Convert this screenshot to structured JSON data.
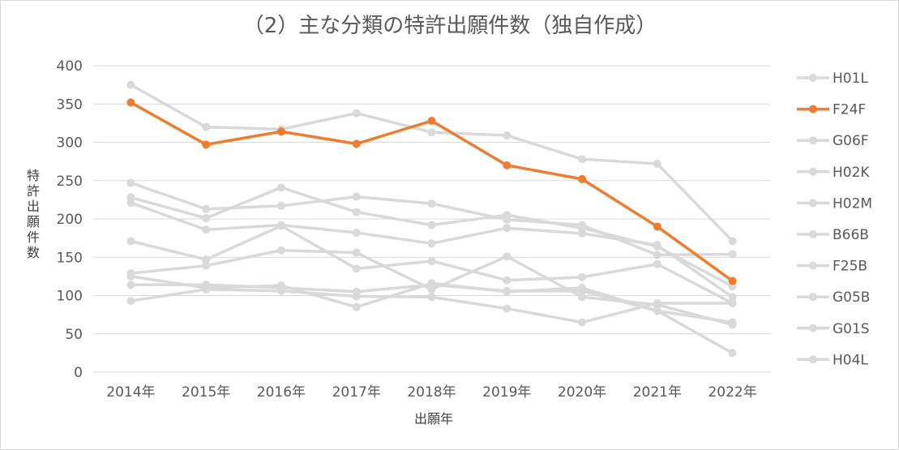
{
  "chart_data": {
    "type": "line",
    "title": "（2）主な分類の特許出願件数（独自作成）",
    "xlabel": "出願年",
    "ylabel": "特許出願件数",
    "ylim": [
      0,
      400
    ],
    "yticks": [
      "0",
      "50",
      "100",
      "150",
      "200",
      "250",
      "300",
      "350",
      "400"
    ],
    "grid": true,
    "legend_position": "right",
    "categories": [
      "2014年",
      "2015年",
      "2016年",
      "2017年",
      "2018年",
      "2019年",
      "2020年",
      "2021年",
      "2022年"
    ],
    "highlight_color": "#ed7d31",
    "base_color": "#d9d9d9",
    "series": [
      {
        "name": "H01L",
        "highlight": false,
        "values": [
          375,
          320,
          317,
          338,
          313,
          309,
          278,
          272,
          171
        ]
      },
      {
        "name": "F24F",
        "highlight": true,
        "values": [
          352,
          297,
          314,
          298,
          328,
          270,
          252,
          190,
          119
        ]
      },
      {
        "name": "G06F",
        "highlight": false,
        "values": [
          247,
          213,
          217,
          229,
          220,
          199,
          192,
          153,
          154
        ]
      },
      {
        "name": "H02K",
        "highlight": false,
        "values": [
          228,
          201,
          241,
          209,
          192,
          205,
          188,
          164,
          112
        ]
      },
      {
        "name": "H02M",
        "highlight": false,
        "values": [
          221,
          186,
          192,
          182,
          168,
          188,
          181,
          166,
          98
        ]
      },
      {
        "name": "B66B",
        "highlight": false,
        "values": [
          171,
          147,
          191,
          135,
          145,
          120,
          124,
          141,
          90
        ]
      },
      {
        "name": "F25B",
        "highlight": false,
        "values": [
          129,
          139,
          159,
          156,
          108,
          151,
          98,
          88,
          62
        ]
      },
      {
        "name": "G05B",
        "highlight": false,
        "values": [
          125,
          110,
          113,
          85,
          116,
          105,
          110,
          80,
          25
        ]
      },
      {
        "name": "G01S",
        "highlight": false,
        "values": [
          114,
          114,
          110,
          105,
          114,
          106,
          106,
          80,
          65
        ]
      },
      {
        "name": "H04L",
        "highlight": false,
        "values": [
          93,
          108,
          106,
          99,
          98,
          83,
          65,
          90,
          90
        ]
      }
    ]
  }
}
